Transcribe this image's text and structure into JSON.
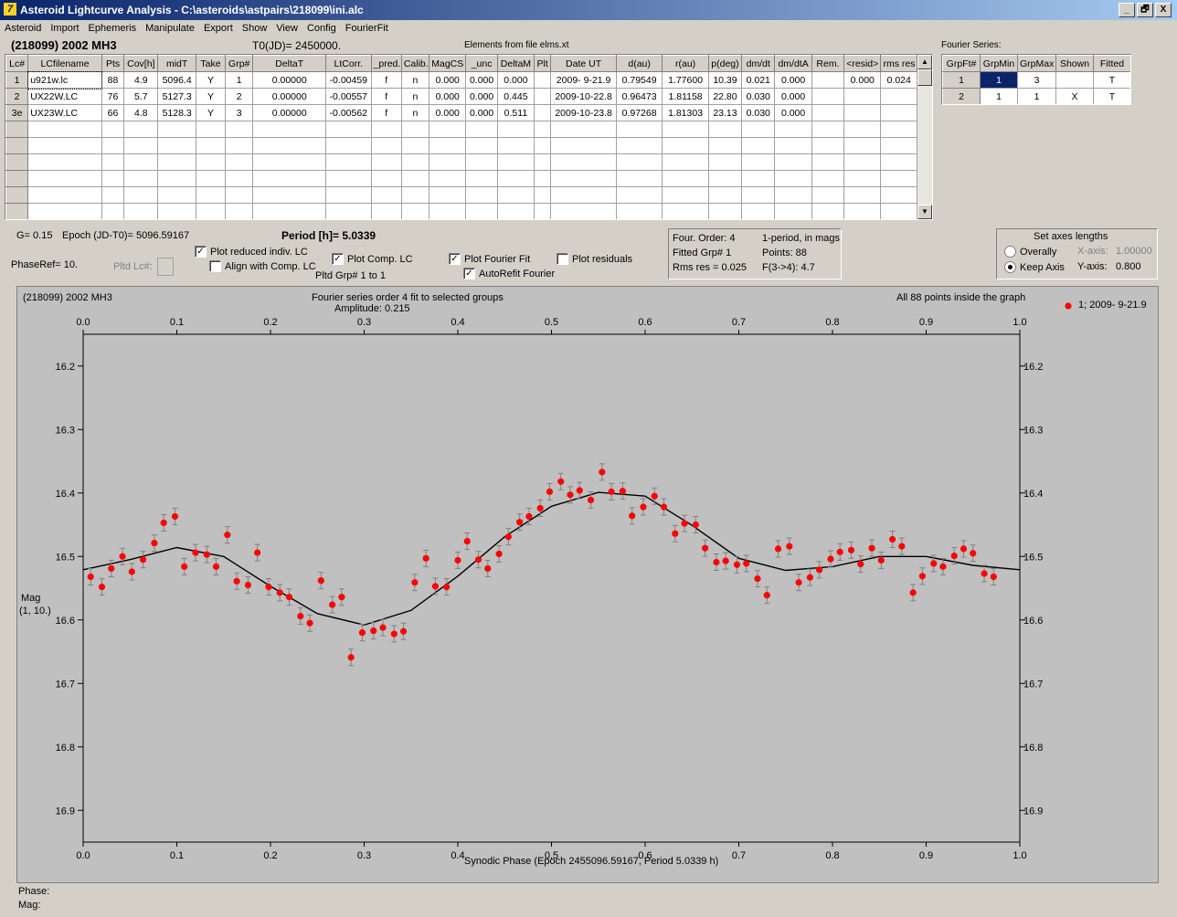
{
  "window": {
    "title": "Asteroid Lightcurve Analysis - C:\\asteroids\\astpairs\\218099\\ini.alc",
    "buttons": [
      "_",
      "🗗",
      "X"
    ]
  },
  "menu": [
    "Asteroid",
    "Import",
    "Ephemeris",
    "Manipulate",
    "Export",
    "Show",
    "View",
    "Config",
    "FourierFit"
  ],
  "header": {
    "asteroid": "(218099) 2002 MH3",
    "t0": "T0(JD)= 2450000.",
    "elements": "Elements from file elms.xt"
  },
  "lc_table": {
    "columns": [
      "Lc#",
      "LCfilename",
      "Pts",
      "Cov[h]",
      "midT",
      "Take",
      "Grp#",
      "DeltaT",
      "LtCorr.",
      "_pred.",
      "Calib.",
      "MagCS",
      "_unc",
      "DeltaM",
      "Plt",
      "Date UT",
      "d(au)",
      "r(au)",
      "p(deg)",
      "dm/dt",
      "dm/dtA",
      "Rem.",
      "<resid>",
      "rms res"
    ],
    "rows": [
      [
        "1",
        "u921w.lc",
        "88",
        "4.9",
        "5096.4",
        "Y",
        "1",
        "0.00000",
        "-0.00459",
        "f",
        "n",
        "0.000",
        "0.000",
        "0.000",
        "",
        "2009- 9-21.9",
        "0.79549",
        "1.77600",
        "10.39",
        "0.021",
        "0.000",
        "",
        "0.000",
        "0.024"
      ],
      [
        "2",
        "UX22W.LC",
        "76",
        "5.7",
        "5127.3",
        "Y",
        "2",
        "0.00000",
        "-0.00557",
        "f",
        "n",
        "0.000",
        "0.000",
        "0.445",
        "",
        "2009-10-22.8",
        "0.96473",
        "1.81158",
        "22.80",
        "0.030",
        "0.000",
        "",
        "",
        ""
      ],
      [
        "3e",
        "UX23W.LC",
        "66",
        "4.8",
        "5128.3",
        "Y",
        "3",
        "0.00000",
        "-0.00562",
        "f",
        "n",
        "0.000",
        "0.000",
        "0.511",
        "",
        "2009-10-23.8",
        "0.97268",
        "1.81303",
        "23.13",
        "0.030",
        "0.000",
        "",
        "",
        ""
      ]
    ],
    "empty_rows": 7
  },
  "fourier_series": {
    "label": "Fourier Series:",
    "columns": [
      "GrpFt#",
      "GrpMin",
      "GrpMax",
      "Shown",
      "Fitted"
    ],
    "rows": [
      [
        "1",
        "1",
        "3",
        "",
        "T"
      ],
      [
        "2",
        "1",
        "1",
        "X",
        "T"
      ]
    ]
  },
  "controls": {
    "g": "G= 0.15",
    "epoch": "Epoch (JD-T0)= 5096.59167",
    "period": "Period [h]= 5.0339",
    "phaseref": "PhaseRef= 10.",
    "pltd_lc": "Pltd Lc#:",
    "pltd_grp": "Pltd Grp#  1   to   1",
    "plot_reduced": {
      "label": "Plot reduced indiv. LC",
      "checked": true
    },
    "align_comp": {
      "label": "Align with Comp. LC",
      "checked": false
    },
    "plot_comp": {
      "label": "Plot Comp. LC",
      "checked": true
    },
    "plot_fourier": {
      "label": "Plot Fourier Fit",
      "checked": true
    },
    "autorefit": {
      "label": "AutoRefit Fourier",
      "checked": true
    },
    "plot_residuals": {
      "label": "Plot residuals",
      "checked": false
    }
  },
  "fit_info": {
    "order": "Four. Order:  4",
    "mode": "1-period, in mags",
    "fitted": "Fitted Grp# 1",
    "points": "Points: 88",
    "rms": "Rms res     = 0.025",
    "f34": "F(3->4):   4.7"
  },
  "axes_lengths": {
    "title": "Set axes lengths",
    "overall": "Overally",
    "keep": "Keep Axis",
    "xaxis_label": "X-axis:",
    "xaxis_val": "1.00000",
    "yaxis_label": "Y-axis:",
    "yaxis_val": "0.800",
    "selected": "keep"
  },
  "plot": {
    "name": "(218099) 2002 MH3",
    "fit_title": "Fourier series order 4 fit to selected groups",
    "amplitude": "Amplitude: 0.215",
    "status": "All 88 points inside the graph",
    "legend": "1; 2009- 9-21.9",
    "ylabel": "Mag",
    "ylabel2": "(1, 10.)",
    "xlabel": "Synodic Phase (Epoch 2455096.59167, Period 5.0339 h)"
  },
  "colors": {
    "point": "#ff0000",
    "curve": "#000000",
    "plot_bg": "#c0c0c0",
    "selected_cell": "#0a246a"
  },
  "status": {
    "phase": "Phase:",
    "mag": "Mag:"
  },
  "chart_data": {
    "type": "scatter",
    "xlim": [
      0,
      1
    ],
    "ylim": [
      16.95,
      16.15
    ],
    "xticks": [
      0,
      0.1,
      0.2,
      0.3,
      0.4,
      0.5,
      0.6,
      0.7,
      0.8,
      0.9,
      1.0
    ],
    "xticklabels": [
      "0.0",
      "0.1",
      "0.2",
      "0.3",
      "0.4",
      "0.5",
      "0.6",
      "0.7",
      "0.8",
      "0.9",
      "1.0"
    ],
    "yticks": [
      16.2,
      16.3,
      16.4,
      16.5,
      16.6,
      16.7,
      16.8,
      16.9
    ],
    "yticklabels": [
      "16.2",
      "16.3",
      "16.4",
      "16.5",
      "16.6",
      "16.7",
      "16.8",
      "16.9"
    ],
    "series": [
      {
        "name": "1; 2009- 9-21.9",
        "points": [
          [
            0.008,
            16.532
          ],
          [
            0.02,
            16.548
          ],
          [
            0.03,
            16.519
          ],
          [
            0.042,
            16.5
          ],
          [
            0.052,
            16.524
          ],
          [
            0.064,
            16.505
          ],
          [
            0.076,
            16.479
          ],
          [
            0.086,
            16.447
          ],
          [
            0.098,
            16.437
          ],
          [
            0.108,
            16.516
          ],
          [
            0.12,
            16.494
          ],
          [
            0.132,
            16.497
          ],
          [
            0.142,
            16.516
          ],
          [
            0.154,
            16.466
          ],
          [
            0.164,
            16.539
          ],
          [
            0.176,
            16.545
          ],
          [
            0.186,
            16.494
          ],
          [
            0.198,
            16.548
          ],
          [
            0.21,
            16.557
          ],
          [
            0.22,
            16.564
          ],
          [
            0.232,
            16.594
          ],
          [
            0.242,
            16.605
          ],
          [
            0.254,
            16.538
          ],
          [
            0.266,
            16.576
          ],
          [
            0.276,
            16.564
          ],
          [
            0.286,
            16.659
          ],
          [
            0.298,
            16.62
          ],
          [
            0.31,
            16.617
          ],
          [
            0.32,
            16.612
          ],
          [
            0.332,
            16.622
          ],
          [
            0.342,
            16.618
          ],
          [
            0.354,
            16.541
          ],
          [
            0.366,
            16.503
          ],
          [
            0.376,
            16.547
          ],
          [
            0.388,
            16.548
          ],
          [
            0.4,
            16.506
          ],
          [
            0.41,
            16.476
          ],
          [
            0.422,
            16.505
          ],
          [
            0.432,
            16.519
          ],
          [
            0.444,
            16.496
          ],
          [
            0.454,
            16.469
          ],
          [
            0.466,
            16.446
          ],
          [
            0.476,
            16.437
          ],
          [
            0.488,
            16.424
          ],
          [
            0.498,
            16.398
          ],
          [
            0.51,
            16.382
          ],
          [
            0.52,
            16.403
          ],
          [
            0.53,
            16.396
          ],
          [
            0.542,
            16.411
          ],
          [
            0.554,
            16.367
          ],
          [
            0.564,
            16.398
          ],
          [
            0.576,
            16.397
          ],
          [
            0.586,
            16.436
          ],
          [
            0.598,
            16.422
          ],
          [
            0.61,
            16.405
          ],
          [
            0.62,
            16.422
          ],
          [
            0.632,
            16.464
          ],
          [
            0.642,
            16.448
          ],
          [
            0.654,
            16.45
          ],
          [
            0.664,
            16.487
          ],
          [
            0.676,
            16.509
          ],
          [
            0.686,
            16.507
          ],
          [
            0.698,
            16.513
          ],
          [
            0.708,
            16.511
          ],
          [
            0.72,
            16.535
          ],
          [
            0.73,
            16.561
          ],
          [
            0.742,
            16.488
          ],
          [
            0.754,
            16.484
          ],
          [
            0.764,
            16.541
          ],
          [
            0.776,
            16.533
          ],
          [
            0.786,
            16.521
          ],
          [
            0.798,
            16.504
          ],
          [
            0.808,
            16.493
          ],
          [
            0.82,
            16.49
          ],
          [
            0.83,
            16.512
          ],
          [
            0.842,
            16.487
          ],
          [
            0.852,
            16.506
          ],
          [
            0.864,
            16.473
          ],
          [
            0.874,
            16.484
          ],
          [
            0.886,
            16.557
          ],
          [
            0.896,
            16.531
          ],
          [
            0.908,
            16.511
          ],
          [
            0.918,
            16.516
          ],
          [
            0.93,
            16.499
          ],
          [
            0.94,
            16.488
          ],
          [
            0.95,
            16.495
          ],
          [
            0.962,
            16.527
          ],
          [
            0.972,
            16.532
          ]
        ]
      }
    ],
    "fit": {
      "name": "Fourier fit order 4",
      "points": [
        [
          0.0,
          16.521
        ],
        [
          0.05,
          16.505
        ],
        [
          0.1,
          16.486
        ],
        [
          0.15,
          16.5
        ],
        [
          0.2,
          16.547
        ],
        [
          0.25,
          16.59
        ],
        [
          0.3,
          16.608
        ],
        [
          0.35,
          16.585
        ],
        [
          0.4,
          16.531
        ],
        [
          0.45,
          16.469
        ],
        [
          0.5,
          16.421
        ],
        [
          0.55,
          16.399
        ],
        [
          0.6,
          16.405
        ],
        [
          0.65,
          16.451
        ],
        [
          0.7,
          16.503
        ],
        [
          0.75,
          16.522
        ],
        [
          0.8,
          16.516
        ],
        [
          0.85,
          16.5
        ],
        [
          0.9,
          16.5
        ],
        [
          0.95,
          16.514
        ],
        [
          1.0,
          16.521
        ]
      ]
    }
  }
}
